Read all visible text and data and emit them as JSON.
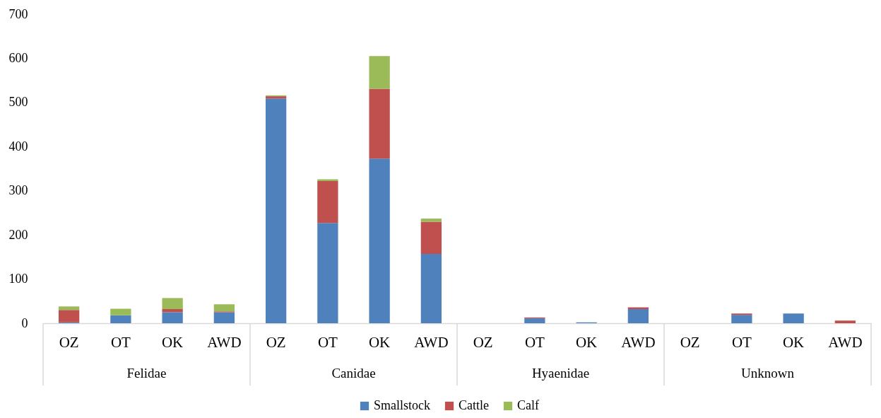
{
  "chart_data": {
    "type": "bar",
    "stacked": true,
    "categories": [
      "OZ",
      "OT",
      "OK",
      "AWD",
      "OZ",
      "OT",
      "OK",
      "AWD",
      "OZ",
      "OT",
      "OK",
      "AWD",
      "OZ",
      "OT",
      "OK",
      "AWD"
    ],
    "annotations": [
      "Felidae",
      "Canidae",
      "Hyaenidae",
      "Unknown"
    ],
    "series": [
      {
        "name": "Smallstock",
        "color": "#4f81bd",
        "values": [
          2,
          18,
          25,
          25,
          509,
          227,
          373,
          157,
          0,
          11,
          2,
          32,
          0,
          19,
          22,
          0
        ]
      },
      {
        "name": "Cattle",
        "color": "#c0504d",
        "values": [
          28,
          0,
          7,
          2,
          5,
          95,
          158,
          73,
          0,
          2,
          0,
          4,
          0,
          3,
          0,
          6
        ]
      },
      {
        "name": "Calf",
        "color": "#9bbb59",
        "values": [
          8,
          15,
          25,
          16,
          2,
          4,
          74,
          7,
          0,
          0,
          0,
          0,
          0,
          0,
          0,
          0
        ]
      }
    ],
    "ylim": [
      0,
      700
    ],
    "yticks": [
      0,
      100,
      200,
      300,
      400,
      500,
      600,
      700
    ],
    "legend": "bottom"
  }
}
